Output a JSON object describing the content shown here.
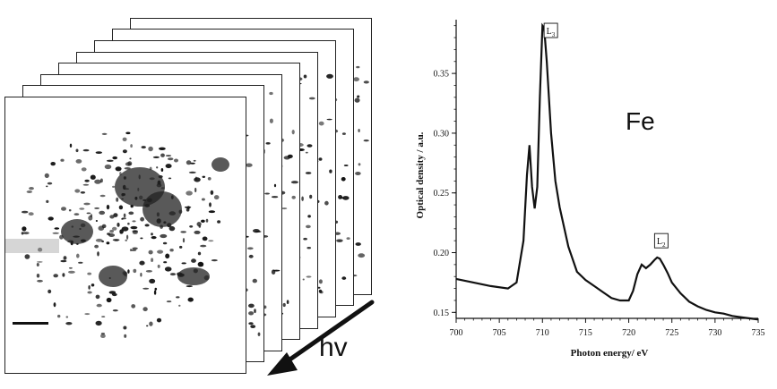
{
  "image_stack": {
    "frame_count": 8,
    "arrow_label": "hv",
    "scale_bar": true,
    "colors": {
      "ink": "#111111",
      "frame_border": "#222222",
      "background": "#ffffff"
    }
  },
  "chart_data": {
    "type": "line",
    "title": "",
    "xlabel": "Photon energy/ eV",
    "ylabel": "Optical density / a.u.",
    "xlim": [
      700,
      735
    ],
    "ylim": [
      0.145,
      0.395
    ],
    "xticks": [
      700,
      705,
      710,
      715,
      720,
      725,
      730,
      735
    ],
    "yticks": [
      0.15,
      0.2,
      0.25,
      0.3,
      0.35
    ],
    "ytick_labels": [
      "0.15",
      "0.20",
      "0.25",
      "0.30",
      "0.35"
    ],
    "grid": false,
    "line_color": "#111111",
    "series": [
      {
        "x": [
          700,
          702,
          704,
          706,
          707,
          707.8,
          708.2,
          708.5,
          708.8,
          709.1,
          709.4,
          709.7,
          710.0,
          710.2,
          710.5,
          711.0,
          711.5,
          712.0,
          713.0,
          714.0,
          715.0,
          716.0,
          717.0,
          718.0,
          719.0,
          720.0,
          720.5,
          721.0,
          721.5,
          722.0,
          722.5,
          723.0,
          723.3,
          723.6,
          724.0,
          724.5,
          725.0,
          726.0,
          727.0,
          728.0,
          729.0,
          730.0,
          731.0,
          732.0,
          733.0,
          734.0,
          735.0
        ],
        "y": [
          0.178,
          0.175,
          0.172,
          0.17,
          0.175,
          0.21,
          0.265,
          0.29,
          0.255,
          0.237,
          0.255,
          0.33,
          0.39,
          0.388,
          0.36,
          0.3,
          0.26,
          0.238,
          0.205,
          0.184,
          0.177,
          0.172,
          0.167,
          0.162,
          0.16,
          0.16,
          0.168,
          0.182,
          0.19,
          0.187,
          0.19,
          0.194,
          0.196,
          0.195,
          0.19,
          0.183,
          0.175,
          0.166,
          0.159,
          0.155,
          0.152,
          0.15,
          0.149,
          0.147,
          0.146,
          0.145,
          0.144
        ]
      }
    ],
    "annotations": [
      {
        "text": "L",
        "sub": "3",
        "x": 710.4,
        "y": 0.383
      },
      {
        "text": "L",
        "sub": "2",
        "x": 723.2,
        "y": 0.207
      }
    ],
    "element_label": "Fe"
  }
}
